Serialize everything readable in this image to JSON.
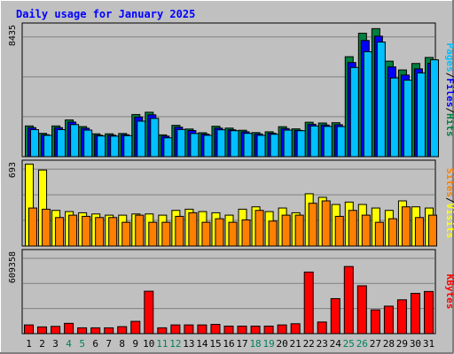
{
  "chart_data": {
    "type": "bar",
    "title": "Daily usage for January 2025",
    "categories": [
      "1",
      "2",
      "3",
      "4",
      "5",
      "6",
      "7",
      "8",
      "9",
      "10",
      "11",
      "12",
      "13",
      "14",
      "15",
      "16",
      "17",
      "18",
      "19",
      "20",
      "21",
      "22",
      "23",
      "24",
      "25",
      "26",
      "27",
      "28",
      "29",
      "30",
      "31"
    ],
    "weekend_days": [
      "4",
      "5",
      "11",
      "12",
      "18",
      "19",
      "25",
      "26"
    ],
    "panels": [
      {
        "id": "hits",
        "ymax": 8435,
        "ymax_label": "8435",
        "series": [
          {
            "name": "Hits",
            "color": "#008040",
            "values": [
              1990,
              1510,
              1990,
              2380,
              1950,
              1480,
              1480,
              1500,
              2730,
              2880,
              1410,
              2030,
              1790,
              1550,
              1970,
              1850,
              1710,
              1560,
              1610,
              1940,
              1800,
              2230,
              2180,
              2200,
              6480,
              8000,
              8300,
              6190,
              5620,
              6040,
              6430
            ]
          },
          {
            "name": "Files",
            "color": "#0000FF",
            "values": [
              1880,
              1420,
              1880,
              2240,
              1840,
              1390,
              1390,
              1420,
              2570,
              2710,
              1330,
              1910,
              1690,
              1460,
              1850,
              1740,
              1610,
              1470,
              1520,
              1820,
              1700,
              2100,
              2050,
              2070,
              6100,
              7530,
              7810,
              5820,
              5290,
              5690,
              6050
            ]
          },
          {
            "name": "Pages",
            "color": "#00C0FF",
            "values": [
              1750,
              1380,
              1750,
              2080,
              1720,
              1340,
              1330,
              1360,
              2300,
              2480,
              1220,
              1760,
              1500,
              1380,
              1740,
              1680,
              1510,
              1380,
              1450,
              1720,
              1680,
              1990,
              1960,
              1950,
              5780,
              6800,
              7430,
              5100,
              4960,
              5430,
              6280
            ]
          }
        ]
      },
      {
        "id": "visits",
        "ymax": 693,
        "ymax_label": "693",
        "series": [
          {
            "name": "Visits",
            "color": "#FFFF00",
            "values": [
              690,
              640,
              300,
              290,
              280,
              270,
              260,
              260,
              270,
              270,
              260,
              300,
              310,
              290,
              280,
              260,
              310,
              330,
              290,
              320,
              280,
              440,
              410,
              350,
              370,
              350,
              320,
              300,
              380,
              330,
              320
            ]
          },
          {
            "name": "Sites",
            "color": "#FF8000",
            "values": [
              320,
              310,
              240,
              260,
              250,
              240,
              240,
              200,
              260,
              200,
              200,
              250,
              280,
              200,
              230,
              200,
              220,
              300,
              210,
              260,
              260,
              360,
              380,
              250,
              300,
              260,
              200,
              230,
              330,
              240,
              260
            ]
          }
        ]
      },
      {
        "id": "kbytes",
        "ymax": 609358,
        "ymax_label": "609358",
        "series": [
          {
            "name": "KBytes",
            "color": "#FF0000",
            "values": [
              66000,
              51000,
              55000,
              78000,
              44000,
              44000,
              44000,
              53000,
              93000,
              321000,
              44000,
              66000,
              66000,
              66000,
              70000,
              57000,
              57000,
              57000,
              57000,
              66000,
              75000,
              466000,
              88000,
              265000,
              508000,
              362000,
              180000,
              208000,
              256000,
              305000,
              319000
            ]
          }
        ]
      }
    ],
    "axis_labels": {
      "panel1": [
        "Hits",
        "Files",
        "Pages"
      ],
      "panel2": [
        "Visits",
        "Sites"
      ],
      "panel3": [
        "KBytes"
      ],
      "separator": "/"
    },
    "grid": true,
    "background_color": "#C0C0C0",
    "colors": {
      "title": "#0000FF",
      "weekend_label": "#00805C",
      "weekday_label": "#000000"
    }
  }
}
